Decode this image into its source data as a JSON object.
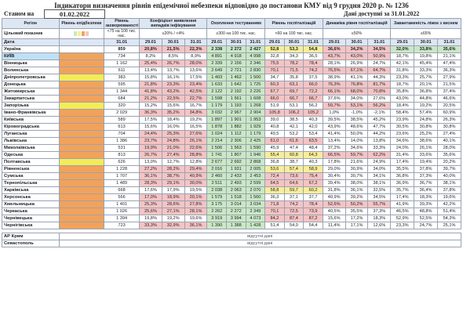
{
  "title": "Індикатори визначення рівнів епідемічної небезпеки відповідно до постанови КМУ від 9 грудня 2020 р. № 1236",
  "stan_label": "Станом на",
  "stan_date": "01.02.2022",
  "available_label": "Дані доступні за 31.01.2022",
  "headers": {
    "region": "Регіон",
    "level": "Рівень епідбезпеки",
    "incidence": "Рівень захворюваності",
    "detect": "Коефіцієнт виявлення випадків інфікування",
    "testing": "Охоплення тестуванням",
    "hosp": "Рівень госпіталізацій",
    "hosp_dyn": "Динаміка рівня госпіталізацій",
    "oxygen": "Завантаженість ліжок з киснем"
  },
  "targets": {
    "label": "Цільовий показник",
    "incidence": "<75 на 100 тис. нас.",
    "detect": "≤20% / <4%",
    "testing": "≥300 на 100 тис. нас.",
    "hosp": "<60 на 100 тис. нас.",
    "hosp_dyn": "≤50%",
    "oxygen": "≤65%"
  },
  "date_row": {
    "label": "Дата",
    "d1": "31.01",
    "d2": "29.01",
    "d3": "30.01",
    "d4": "31.01"
  },
  "target_colors": [
    "#c9e8c5",
    "#f7ee9a",
    "#f2a25a",
    "#f5c4c4"
  ],
  "rows": [
    {
      "name": "Україна",
      "lvl": "",
      "lc": "",
      "inc": "859",
      "dt": [
        "20,8%",
        "21,5%",
        "22,3%"
      ],
      "dc": "r",
      "ts": [
        "2 338",
        "2 272",
        "2 427"
      ],
      "tc": "g",
      "h": [
        "52,8",
        "53,3",
        "54,8"
      ],
      "hc": "y",
      "hd": [
        "36,6%",
        "34,2%",
        "34,5%"
      ],
      "hdc": "r",
      "ox": [
        "32,0%",
        "33,8%",
        "35,6%"
      ],
      "oc": "g"
    },
    {
      "name": "КИЇВ",
      "lvl": "",
      "lc": "o",
      "inc": "734",
      "dt": [
        "8,2%",
        "8,5%",
        "8,9%"
      ],
      "dc": "",
      "ts": [
        "4 891",
        "4 918",
        "4 998"
      ],
      "tc": "g",
      "h": [
        "32,8",
        "34,3",
        "36,5"
      ],
      "hc": "",
      "hd": [
        "43,7%",
        "43,0%",
        "50,9%"
      ],
      "hdc": "r",
      "ox": [
        "18,7%",
        "19,8%",
        "21,1%"
      ],
      "oc": ""
    },
    {
      "name": "Вінницька",
      "lvl": "",
      "lc": "o",
      "inc": "1 162",
      "dt": [
        "25,4%",
        "26,7%",
        "28,0%"
      ],
      "dc": "r",
      "ts": [
        "2 339",
        "2 156",
        "2 346"
      ],
      "tc": "g",
      "h": [
        "75,5",
        "78,2",
        "78,4"
      ],
      "hc": "r",
      "hd": [
        "28,1%",
        "26,9%",
        "24,7%"
      ],
      "hdc": "",
      "ox": [
        "42,1%",
        "45,4%",
        "47,4%"
      ],
      "oc": ""
    },
    {
      "name": "Волинська",
      "lvl": "",
      "lc": "o",
      "inc": "611",
      "dt": [
        "13,4%",
        "13,7%",
        "13,6%"
      ],
      "dc": "",
      "ts": [
        "2 649",
        "2 721",
        "2 830"
      ],
      "tc": "g",
      "h": [
        "70,1",
        "71,5",
        "74,2"
      ],
      "hc": "r",
      "hd": [
        "76,5%",
        "67,1%",
        "64,7%"
      ],
      "hdc": "r",
      "ox": [
        "31,8%",
        "33,3%",
        "36,3%"
      ],
      "oc": ""
    },
    {
      "name": "Дніпропетровська",
      "lvl": "",
      "lc": "yl",
      "inc": "383",
      "dt": [
        "15,8%",
        "16,1%",
        "17,5%"
      ],
      "dc": "",
      "ts": [
        "1 403",
        "1 462",
        "1 500"
      ],
      "tc": "g",
      "h": [
        "34,7",
        "35,8",
        "37,5"
      ],
      "hc": "",
      "hd": [
        "38,9%",
        "41,1%",
        "44,3%"
      ],
      "hdc": "",
      "ox": [
        "23,3%",
        "25,7%",
        "27,9%"
      ],
      "oc": ""
    },
    {
      "name": "Донецька",
      "lvl": "",
      "lc": "o",
      "inc": "595",
      "dt": [
        "21,8%",
        "23,3%",
        "23,4%"
      ],
      "dc": "r",
      "ts": [
        "1 633",
        "1 642",
        "1 725"
      ],
      "tc": "g",
      "h": [
        "60,3",
        "63,1",
        "66,0"
      ],
      "hc": "r",
      "hd": [
        "76,3%",
        "76,8%",
        "81,7%"
      ],
      "hdc": "r",
      "ox": [
        "18,7%",
        "20,1%",
        "21,5%"
      ],
      "oc": ""
    },
    {
      "name": "Житомирська",
      "lvl": "",
      "lc": "o",
      "inc": "1 344",
      "dt": [
        "41,8%",
        "43,2%",
        "42,5%"
      ],
      "dc": "r",
      "ts": [
        "2 122",
        "2 192",
        "2 226"
      ],
      "tc": "g",
      "h": [
        "67,7",
        "69,7",
        "72,2"
      ],
      "hc": "r",
      "hd": [
        "66,1%",
        "68,0%",
        "70,8%"
      ],
      "hdc": "r",
      "ox": [
        "35,8%",
        "36,8%",
        "37,4%"
      ],
      "oc": ""
    },
    {
      "name": "Закарпатська",
      "lvl": "",
      "lc": "o",
      "inc": "684",
      "dt": [
        "21,2%",
        "22,5%",
        "22,7%"
      ],
      "dc": "r",
      "ts": [
        "1 598",
        "1 561",
        "1 608"
      ],
      "tc": "g",
      "h": [
        "66,0",
        "66,7",
        "66,7"
      ],
      "hc": "r",
      "hd": [
        "37,6%",
        "34,0%",
        "27,6%"
      ],
      "hdc": "",
      "ox": [
        "43,0%",
        "44,8%",
        "46,6%"
      ],
      "oc": ""
    },
    {
      "name": "Запорізька",
      "lvl": "",
      "lc": "yl",
      "inc": "320",
      "dt": [
        "15,2%",
        "15,6%",
        "16,7%"
      ],
      "dc": "",
      "ts": [
        "1 179",
        "1 193",
        "1 268"
      ],
      "tc": "g",
      "h": [
        "51,9",
        "53,1",
        "56,2"
      ],
      "hc": "",
      "hd": [
        "59,7%",
        "53,1%",
        "56,2%"
      ],
      "hdc": "r",
      "ox": [
        "18,4%",
        "19,2%",
        "20,5%"
      ],
      "oc": ""
    },
    {
      "name": "Івано-Франківська",
      "lvl": "",
      "lc": "o",
      "inc": "2 029",
      "dt": [
        "36,3%",
        "35,2%",
        "34,8%"
      ],
      "dc": "r",
      "ts": [
        "3 032",
        "2 967",
        "2 904"
      ],
      "tc": "g",
      "h": [
        "105,8",
        "106,2",
        "105,2"
      ],
      "hc": "r",
      "hd": [
        "1,0%",
        "-1,0%",
        "-2,1%"
      ],
      "hdc": "",
      "ox": [
        "58,4%",
        "57,4%",
        "60,9%"
      ],
      "oc": ""
    },
    {
      "name": "Київська",
      "lvl": "",
      "lc": "o",
      "inc": "589",
      "dt": [
        "17,5%",
        "18,4%",
        "19,2%"
      ],
      "dc": "",
      "ts": [
        "1 897",
        "1 901",
        "1 953"
      ],
      "tc": "g",
      "h": [
        "39,0",
        "38,5",
        "40,3"
      ],
      "hc": "",
      "hd": [
        "39,5%",
        "38,5%",
        "45,2%"
      ],
      "hdc": "",
      "ox": [
        "23,9%",
        "24,8%",
        "26,3%"
      ],
      "oc": ""
    },
    {
      "name": "Кіровоградська",
      "lvl": "",
      "lc": "o",
      "inc": "613",
      "dt": [
        "15,6%",
        "16,0%",
        "16,5%"
      ],
      "dc": "",
      "ts": [
        "1 878",
        "1 882",
        "1 929"
      ],
      "tc": "g",
      "h": [
        "40,8",
        "42,1",
        "42,0"
      ],
      "hc": "",
      "hd": [
        "43,9%",
        "48,6%",
        "47,7%"
      ],
      "hdc": "",
      "ox": [
        "30,5%",
        "30,8%",
        "30,8%"
      ],
      "oc": ""
    },
    {
      "name": "Луганська",
      "lvl": "",
      "lc": "o",
      "inc": "704",
      "dt": [
        "24,4%",
        "25,3%",
        "27,6%"
      ],
      "dc": "r",
      "ts": [
        "1 024",
        "1 112",
        "1 179"
      ],
      "tc": "g",
      "h": [
        "49,5",
        "53,2",
        "53,4"
      ],
      "hc": "",
      "hd": [
        "41,4%",
        "50,0%",
        "44,2%"
      ],
      "hdc": "",
      "ox": [
        "23,6%",
        "25,2%",
        "27,4%"
      ],
      "oc": ""
    },
    {
      "name": "Львівська",
      "lvl": "",
      "lc": "o",
      "inc": "1 386",
      "dt": [
        "23,7%",
        "24,8%",
        "26,1%"
      ],
      "dc": "r",
      "ts": [
        "2 214",
        "2 306",
        "2 425"
      ],
      "tc": "g",
      "h": [
        "61,0",
        "61,6",
        "63,5"
      ],
      "hc": "r",
      "hd": [
        "13,4%",
        "14,0%",
        "13,8%"
      ],
      "hdc": "",
      "ox": [
        "34,6%",
        "38,6%",
        "40,1%"
      ],
      "oc": ""
    },
    {
      "name": "Миколаївська",
      "lvl": "",
      "lc": "o",
      "inc": "531",
      "dt": [
        "19,9%",
        "21,0%",
        "22,6%"
      ],
      "dc": "r",
      "ts": [
        "1 506",
        "1 563",
        "1 590"
      ],
      "tc": "g",
      "h": [
        "45,9",
        "47,4",
        "48,4"
      ],
      "hc": "",
      "hd": [
        "37,2%",
        "34,6%",
        "33,3%"
      ],
      "hdc": "",
      "ox": [
        "24,0%",
        "26,1%",
        "28,0%"
      ],
      "oc": ""
    },
    {
      "name": "Одеська",
      "lvl": "",
      "lc": "o",
      "inc": "813",
      "dt": [
        "26,7%",
        "27,4%",
        "28,8%"
      ],
      "dc": "r",
      "ts": [
        "1 741",
        "1 807",
        "1 946"
      ],
      "tc": "g",
      "h": [
        "55,4",
        "60,8",
        "64,3"
      ],
      "hc": "y",
      "hd": [
        "66,5%",
        "59,7%",
        "62,2%"
      ],
      "hdc": "r",
      "ox": [
        "31,4%",
        "33,6%",
        "35,6%"
      ],
      "oc": ""
    },
    {
      "name": "Полтавська",
      "lvl": "",
      "lc": "yl",
      "inc": "626",
      "dt": [
        "13,0%",
        "12,7%",
        "12,8%"
      ],
      "dc": "",
      "ts": [
        "2 677",
        "2 692",
        "2 868"
      ],
      "tc": "g",
      "h": [
        "36,8",
        "38,7",
        "40,3"
      ],
      "hc": "",
      "hd": [
        "17,8%",
        "21,6%",
        "24,9%"
      ],
      "hdc": "",
      "ox": [
        "17,4%",
        "19,4%",
        "20,2%"
      ],
      "oc": ""
    },
    {
      "name": "Рівненська",
      "lvl": "",
      "lc": "o",
      "inc": "1 228",
      "dt": [
        "27,2%",
        "28,2%",
        "29,4%"
      ],
      "dc": "r",
      "ts": [
        "2 016",
        "1 931",
        "2 005"
      ],
      "tc": "g",
      "h": [
        "53,6",
        "57,4",
        "58,9"
      ],
      "hc": "y",
      "hd": [
        "29,0%",
        "30,9%",
        "34,0%"
      ],
      "hdc": "",
      "ox": [
        "35,5%",
        "37,8%",
        "39,7%"
      ],
      "oc": ""
    },
    {
      "name": "Сумська",
      "lvl": "",
      "lc": "o",
      "inc": "1 707",
      "dt": [
        "36,1%",
        "38,7%",
        "40,9%"
      ],
      "dc": "r",
      "ts": [
        "2 460",
        "2 433",
        "2 453"
      ],
      "tc": "g",
      "h": [
        "72,4",
        "73,6",
        "75,4"
      ],
      "hc": "r",
      "hd": [
        "30,4%",
        "30,7%",
        "34,1%"
      ],
      "hdc": "",
      "ox": [
        "36,8%",
        "37,3%",
        "40,0%"
      ],
      "oc": ""
    },
    {
      "name": "Тернопільська",
      "lvl": "",
      "lc": "o",
      "inc": "1 489",
      "dt": [
        "28,3%",
        "29,1%",
        "30,0%"
      ],
      "dc": "r",
      "ts": [
        "2 511",
        "2 493",
        "2 599"
      ],
      "tc": "g",
      "h": [
        "64,5",
        "64,6",
        "67,2"
      ],
      "hc": "r",
      "hd": [
        "39,4%",
        "38,0%",
        "38,1%"
      ],
      "hdc": "",
      "ox": [
        "36,9%",
        "36,7%",
        "38,1%"
      ],
      "oc": ""
    },
    {
      "name": "Харківська",
      "lvl": "",
      "lc": "o",
      "inc": "668",
      "dt": [
        "17,6%",
        "17,9%",
        "19,5%"
      ],
      "dc": "",
      "ts": [
        "2 038",
        "2 063",
        "2 070"
      ],
      "tc": "g",
      "h": [
        "58,8",
        "59,7",
        "60,2"
      ],
      "hc": "y",
      "hd": [
        "31,8%",
        "36,1%",
        "32,5%"
      ],
      "hdc": "",
      "ox": [
        "35,7%",
        "36,4%",
        "37,8%"
      ],
      "oc": ""
    },
    {
      "name": "Херсонська",
      "lvl": "",
      "lc": "o",
      "inc": "566",
      "dt": [
        "17,0%",
        "18,9%",
        "20,1%"
      ],
      "dc": "r",
      "ts": [
        "1 579",
        "1 518",
        "1 560"
      ],
      "tc": "g",
      "h": [
        "36,3",
        "37,1",
        "37,7"
      ],
      "hc": "",
      "hd": [
        "40,9%",
        "39,2%",
        "34,5%"
      ],
      "hdc": "",
      "ox": [
        "17,4%",
        "18,3%",
        "19,6%"
      ],
      "oc": ""
    },
    {
      "name": "Хмельницька",
      "lvl": "",
      "lc": "o",
      "inc": "1 401",
      "dt": [
        "25,3%",
        "28,6%",
        "27,8%"
      ],
      "dc": "r",
      "ts": [
        "3 175",
        "3 014",
        "3 034"
      ],
      "tc": "g",
      "h": [
        "71,8",
        "74,2",
        "78,4"
      ],
      "hc": "r",
      "hd": [
        "52,6%",
        "50,2%",
        "55,7%"
      ],
      "hdc": "r",
      "ox": [
        "41,9%",
        "39,3%",
        "42,2%"
      ],
      "oc": ""
    },
    {
      "name": "Черкаська",
      "lvl": "",
      "lc": "o",
      "inc": "1 026",
      "dt": [
        "25,6%",
        "27,1%",
        "28,1%"
      ],
      "dc": "r",
      "ts": [
        "2 262",
        "2 272",
        "2 349"
      ],
      "tc": "g",
      "h": [
        "70,1",
        "72,5",
        "73,9"
      ],
      "hc": "r",
      "hd": [
        "40,5%",
        "35,5%",
        "37,3%"
      ],
      "hdc": "",
      "ox": [
        "46,5%",
        "48,8%",
        "51,4%"
      ],
      "oc": ""
    },
    {
      "name": "Чернівецька",
      "lvl": "",
      "lc": "o",
      "inc": "1 394",
      "dt": [
        "19,8%",
        "19,2%",
        "19,6%"
      ],
      "dc": "",
      "ts": [
        "3 919",
        "3 994",
        "4 073"
      ],
      "tc": "g",
      "h": [
        "84,2",
        "87,4",
        "87,2"
      ],
      "hc": "r",
      "hd": [
        "15,6%",
        "17,2%",
        "18,3%"
      ],
      "hdc": "",
      "ox": [
        "52,9%",
        "52,5%",
        "54,3%"
      ],
      "oc": ""
    },
    {
      "name": "Чернігівська",
      "lvl": "",
      "lc": "o",
      "inc": "723",
      "dt": [
        "33,3%",
        "32,9%",
        "36,1%"
      ],
      "dc": "r",
      "ts": [
        "1 390",
        "1 388",
        "1 428"
      ],
      "tc": "g",
      "h": [
        "51,4",
        "54,0",
        "54,4"
      ],
      "hc": "",
      "hd": [
        "11,4%",
        "17,1%",
        "12,6%"
      ],
      "hdc": "",
      "ox": [
        "23,3%",
        "24,7%",
        "25,1%"
      ],
      "oc": ""
    }
  ],
  "missing": [
    {
      "name": "АР Крим",
      "text": "відсутні дані"
    },
    {
      "name": "Севастополь",
      "text": "відсутні дані"
    }
  ]
}
